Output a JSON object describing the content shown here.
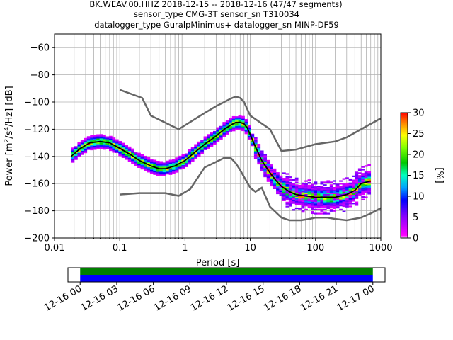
{
  "title_lines": [
    "BK.WEAV.00.HHZ   2018-12-15 -- 2018-12-16  (47/47 segments)",
    "sensor_type CMG-3T sensor_sn T310034",
    "datalogger_type GuralpMinimus+ datalogger_sn MINP-DF59"
  ],
  "chart_data": [
    {
      "type": "heatmap",
      "xlabel": "Period [s]",
      "ylabel": "Power [m^2/s^4/Hz] [dB]",
      "xscale": "log",
      "xlim": [
        0.01,
        1000
      ],
      "ylim": [
        -200,
        -50
      ],
      "xticks": [
        0.01,
        0.1,
        1,
        10,
        100,
        1000
      ],
      "xtick_labels": [
        "0.01",
        "0.1",
        "1",
        "10",
        "100",
        "1000"
      ],
      "yticks": [
        -200,
        -180,
        -160,
        -140,
        -120,
        -100,
        -80,
        -60
      ],
      "ytick_labels": [
        "-200",
        "-180",
        "-160",
        "-140",
        "-120",
        "-100",
        "-80",
        "-60"
      ],
      "grid": true,
      "colorbar": {
        "label": "[%]",
        "range": [
          0,
          30
        ],
        "ticks": [
          0,
          5,
          10,
          15,
          20,
          25,
          30
        ],
        "tick_labels": [
          "0",
          "5",
          "10",
          "15",
          "20",
          "25",
          "30"
        ]
      },
      "series": [
        {
          "x": [
            0.018,
            0.025,
            0.035,
            0.05,
            0.07,
            0.1,
            0.15,
            0.2,
            0.3,
            0.4,
            0.5,
            0.7,
            1,
            1.5,
            2,
            3,
            4,
            5,
            6,
            7,
            8,
            9,
            10,
            12,
            15,
            20,
            25,
            30,
            40,
            50,
            70,
            100,
            150,
            200,
            300,
            400,
            500,
            700
          ],
          "y": [
            -140,
            -134,
            -130,
            -129,
            -130,
            -134,
            -139,
            -143,
            -147,
            -149,
            -149,
            -147,
            -143,
            -136,
            -131,
            -125,
            -120,
            -117,
            -115,
            -115,
            -116,
            -119,
            -124,
            -133,
            -143,
            -152,
            -158,
            -162,
            -166,
            -168,
            -169,
            -170,
            -170,
            -170,
            -168,
            -165,
            -160,
            -158
          ]
        },
        {
          "x": [
            0.1,
            0.22,
            0.3,
            0.8,
            2,
            3,
            4,
            5,
            6,
            7,
            8,
            10,
            20,
            30,
            50,
            100,
            200,
            300,
            500,
            1000
          ],
          "y": [
            -91,
            -97,
            -110,
            -120,
            -108,
            -103,
            -100,
            -97.5,
            -96,
            -97,
            -100,
            -110,
            -120,
            -136,
            -135,
            -131,
            -129,
            -126,
            -120,
            -112
          ]
        },
        {
          "x": [
            0.1,
            0.2,
            0.5,
            0.8,
            1.2,
            2,
            3,
            4,
            5,
            6,
            7,
            8,
            10,
            12,
            15,
            20,
            30,
            40,
            60,
            80,
            100,
            150,
            200,
            300,
            500,
            700,
            1000
          ],
          "y": [
            -168,
            -167,
            -167,
            -169,
            -164,
            -148,
            -144,
            -141,
            -141,
            -145,
            -150,
            -155,
            -163,
            -166,
            -163,
            -177,
            -185,
            -187,
            -187,
            -186,
            -185,
            -185,
            -186,
            -187,
            -185,
            -182,
            -178
          ]
        }
      ]
    },
    {
      "type": "area",
      "title": "",
      "xlim": [
        "12-15 23:00",
        "12-17 01:00"
      ],
      "xtick_labels": [
        "12-16 00",
        "12-16 03",
        "12-16 06",
        "12-16 09",
        "12-16 12",
        "12-16 15",
        "12-16 18",
        "12-16 21",
        "12-17 00"
      ],
      "data_start": "12-16 00",
      "data_end": "12-17 00",
      "band_colors": [
        "#008000",
        "#0000ff"
      ]
    }
  ],
  "colors": {
    "mean_line": "#000000",
    "noise_model": "#666666"
  }
}
